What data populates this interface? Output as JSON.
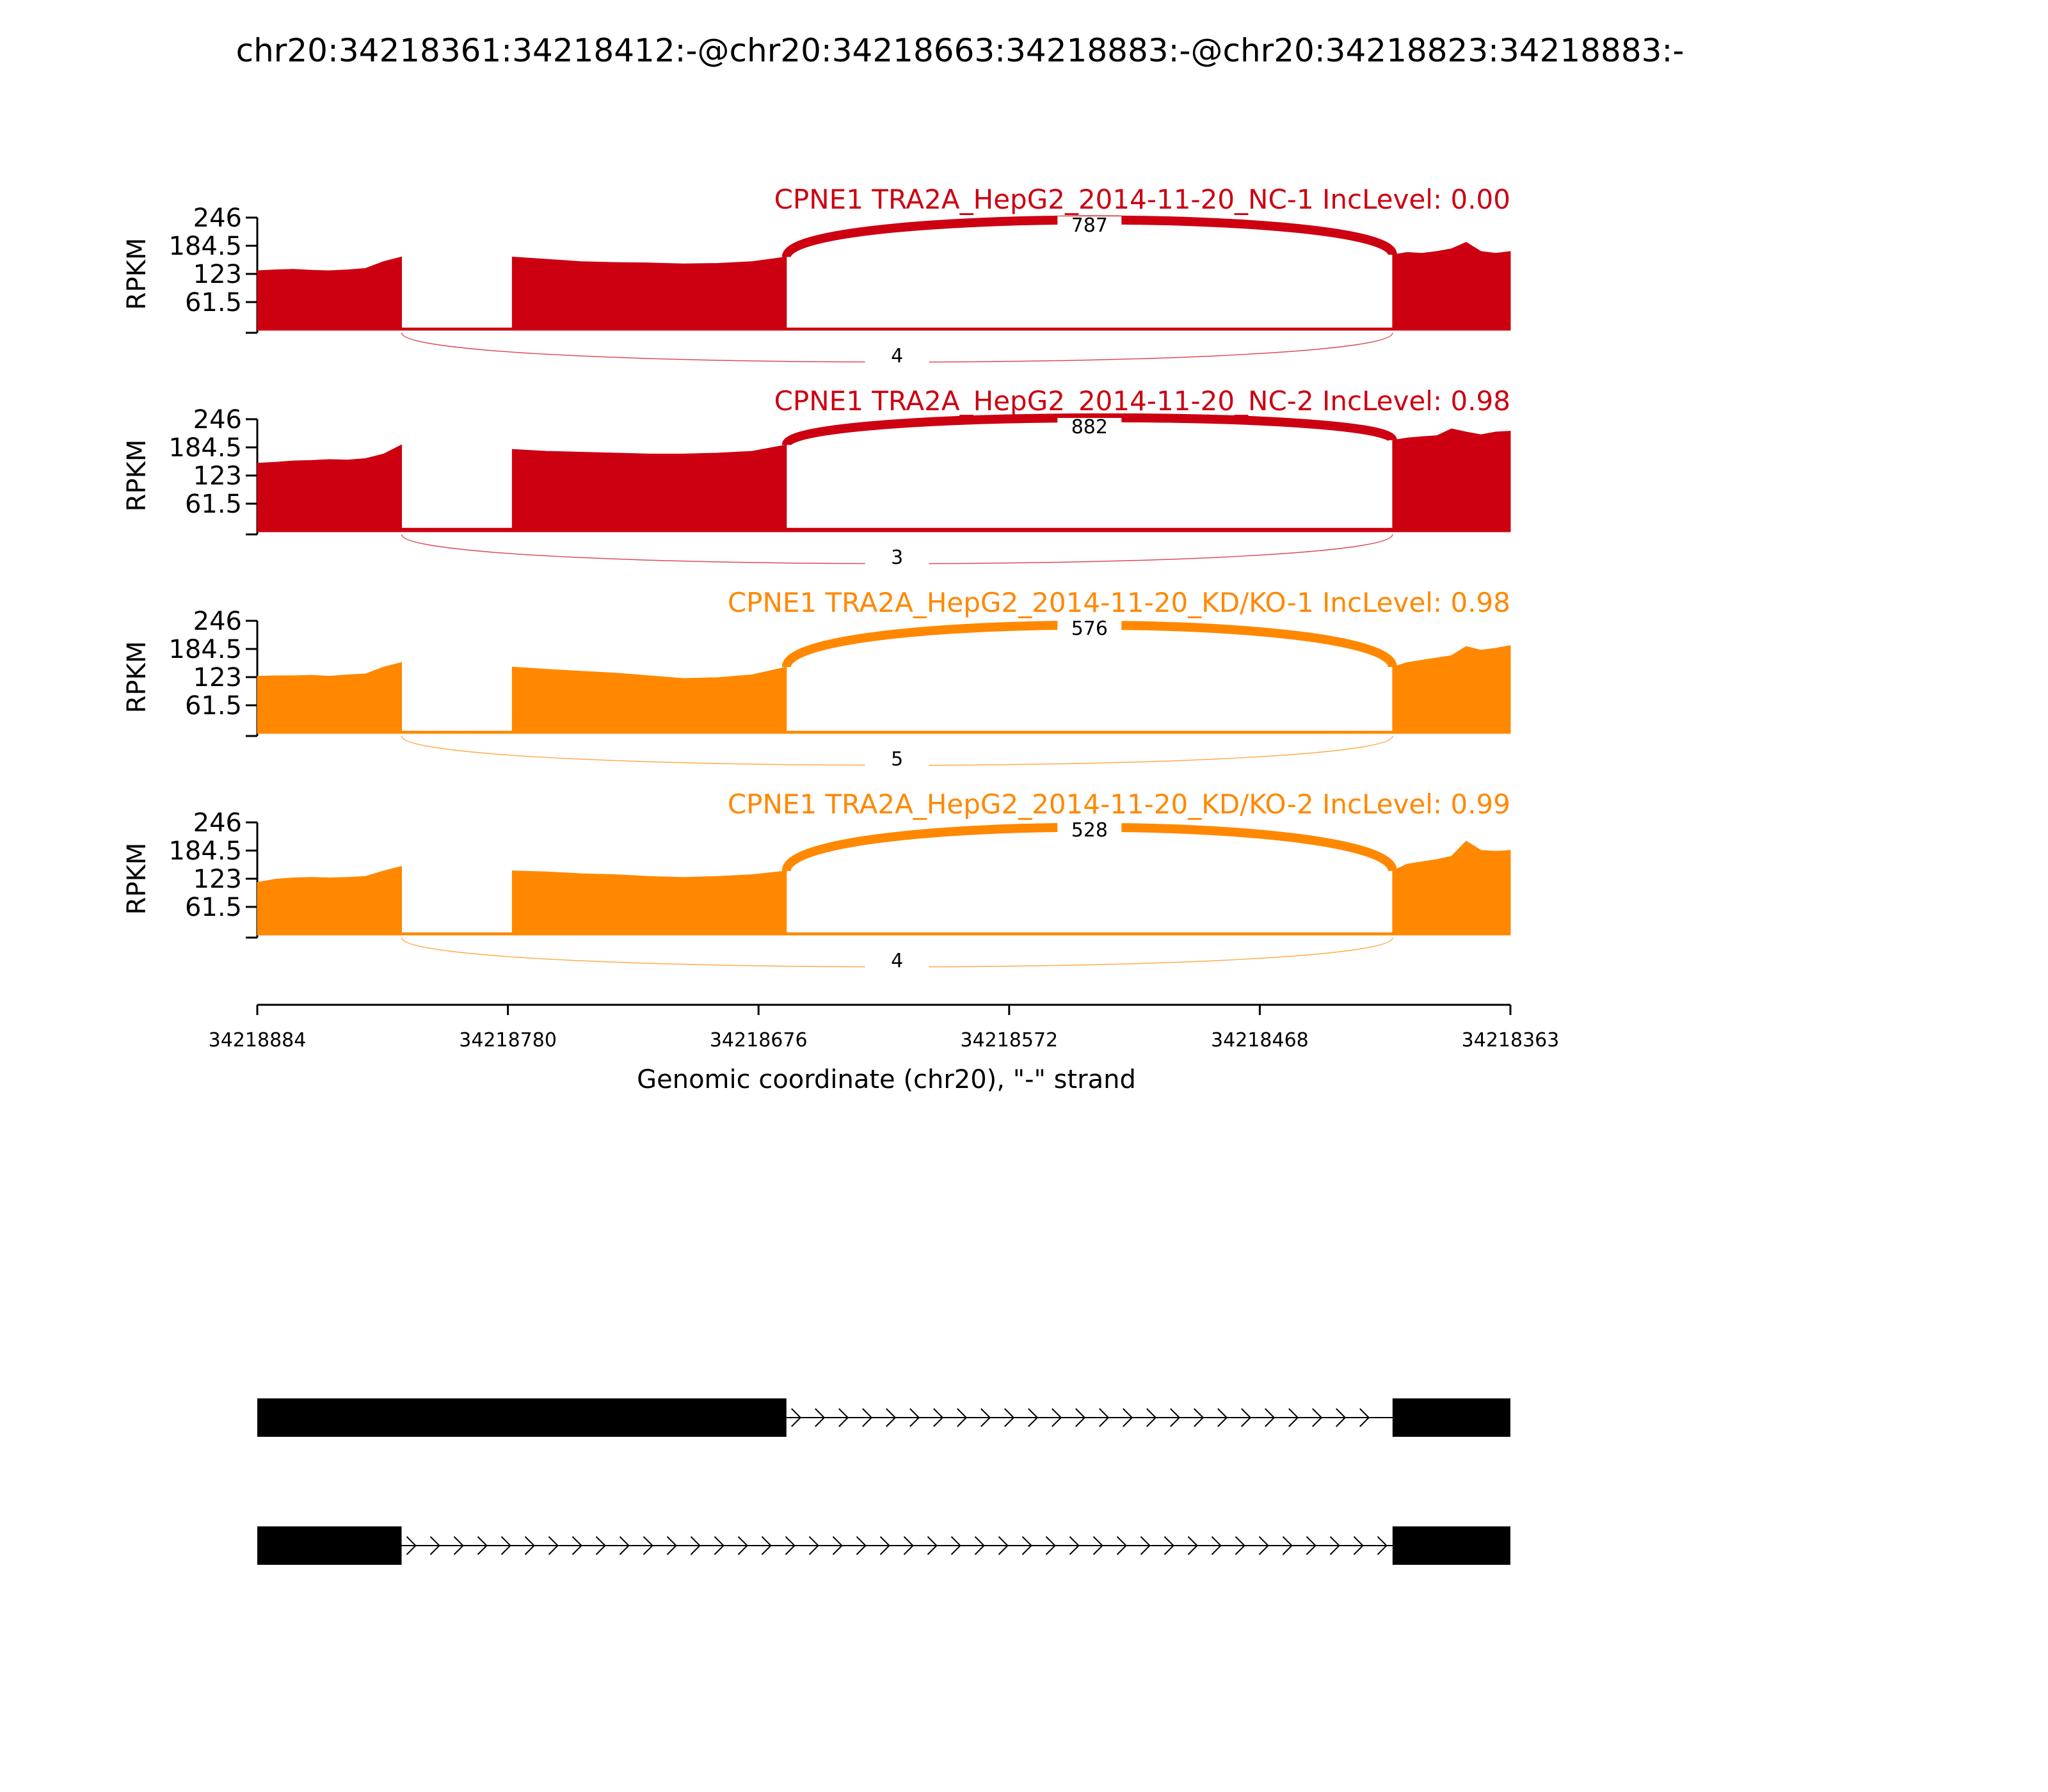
{
  "title": "chr20:34218361:34218412:-@chr20:34218663:34218883:-@chr20:34218823:34218883:-",
  "colors": {
    "nc": "#cc0011",
    "kd": "#ff8800",
    "axis": "#000000",
    "gene": "#000000"
  },
  "chart_data": {
    "type": "area",
    "title": "chr20:34218361:34218412:-@chr20:34218663:34218883:-@chr20:34218823:34218883:-",
    "xlabel": "Genomic coordinate (chr20), \"-\" strand",
    "x_ticks": [
      "34218884",
      "34218780",
      "34218676",
      "34218572",
      "34218468",
      "34218363"
    ],
    "xlim": [
      34218884,
      34218363
    ],
    "ylabel": "RPKM",
    "y_ticks": [
      "246",
      "184.5",
      "123",
      "61.5"
    ],
    "ylim": [
      0,
      246
    ],
    "exons": [
      [
        34218884,
        34218824
      ],
      [
        34218778,
        34218664
      ],
      [
        34218412,
        34218363
      ]
    ],
    "series": [
      {
        "name": "CPNE1 TRA2A_HepG2_2014-11-20_NC-1 IncLevel: 0.00",
        "color": "#cc0011",
        "exon_profiles": [
          [
            130,
            132,
            133,
            131,
            130,
            132,
            135,
            150,
            160
          ],
          [
            160,
            155,
            150,
            148,
            147,
            145,
            146,
            150,
            160
          ],
          [
            165,
            170,
            168,
            172,
            178,
            192,
            172,
            168,
            172
          ]
        ],
        "intron_level": 5,
        "junctions": [
          {
            "from": 34218664,
            "to": 34218412,
            "count": "787",
            "side": "above"
          },
          {
            "from": 34218824,
            "to": 34218412,
            "count": "4",
            "side": "below"
          }
        ]
      },
      {
        "name": "CPNE1 TRA2A_HepG2_2014-11-20_NC-2 IncLevel: 0.98",
        "color": "#cc0011",
        "exon_profiles": [
          [
            150,
            152,
            155,
            156,
            158,
            157,
            160,
            170,
            190
          ],
          [
            180,
            176,
            174,
            172,
            170,
            170,
            172,
            176,
            190
          ],
          [
            200,
            205,
            208,
            210,
            225,
            218,
            212,
            218,
            220
          ]
        ],
        "intron_level": 8,
        "junctions": [
          {
            "from": 34218664,
            "to": 34218412,
            "count": "882",
            "side": "above"
          },
          {
            "from": 34218824,
            "to": 34218412,
            "count": "3",
            "side": "below"
          }
        ]
      },
      {
        "name": "CPNE1 TRA2A_HepG2_2014-11-20_KD/KO-1 IncLevel: 0.98",
        "color": "#ff8800",
        "exon_profiles": [
          [
            125,
            126,
            126,
            127,
            125,
            128,
            130,
            145,
            155
          ],
          [
            145,
            140,
            136,
            132,
            126,
            120,
            122,
            128,
            145
          ],
          [
            145,
            155,
            160,
            165,
            170,
            190,
            182,
            186,
            192
          ]
        ],
        "intron_level": 5,
        "junctions": [
          {
            "from": 34218664,
            "to": 34218412,
            "count": "576",
            "side": "above"
          },
          {
            "from": 34218824,
            "to": 34218412,
            "count": "5",
            "side": "below"
          }
        ]
      },
      {
        "name": "CPNE1 TRA2A_HepG2_2014-11-20_KD/KO-2 IncLevel: 0.99",
        "color": "#ff8800",
        "exon_profiles": [
          [
            115,
            122,
            125,
            126,
            125,
            126,
            128,
            140,
            150
          ],
          [
            140,
            138,
            134,
            132,
            128,
            126,
            128,
            132,
            140
          ],
          [
            140,
            155,
            160,
            165,
            172,
            205,
            185,
            183,
            185
          ]
        ],
        "intron_level": 5,
        "junctions": [
          {
            "from": 34218664,
            "to": 34218412,
            "count": "528",
            "side": "above"
          },
          {
            "from": 34218824,
            "to": 34218412,
            "count": "4",
            "side": "below"
          }
        ]
      }
    ],
    "isoforms": [
      {
        "exons": [
          [
            34218884,
            34218664
          ],
          [
            34218412,
            34218363
          ]
        ]
      },
      {
        "exons": [
          [
            34218884,
            34218824
          ],
          [
            34218412,
            34218363
          ]
        ]
      }
    ]
  }
}
